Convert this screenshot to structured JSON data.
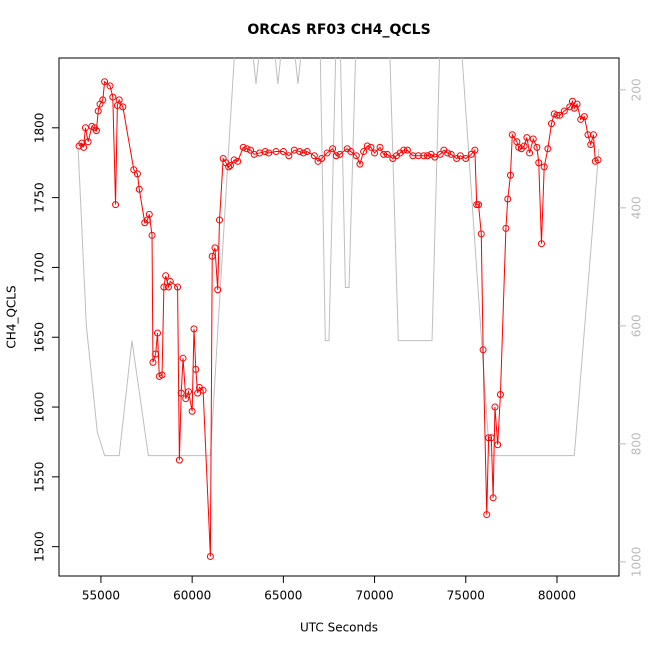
{
  "chart_data": {
    "type": "line",
    "title": "ORCAS RF03 CH4_QCLS",
    "x_label": "UTC Seconds",
    "y_label": "CH4_QCLS",
    "xlim": [
      52700,
      83400
    ],
    "ylim": [
      1479,
      1850
    ],
    "y2lim": [
      1024,
      146
    ],
    "xticks": [
      55000,
      60000,
      65000,
      70000,
      75000,
      80000
    ],
    "yticks": [
      1500,
      1550,
      1600,
      1650,
      1700,
      1750,
      1800
    ],
    "y2ticks": [
      200,
      400,
      600,
      800,
      1000
    ],
    "series": [
      {
        "color": "#bebebe",
        "axis": "y2",
        "markers": false,
        "x": [
          53750,
          54200,
          54800,
          55200,
          56000,
          56700,
          57600,
          61000,
          62000,
          62400,
          63200,
          63500,
          63800,
          64400,
          64700,
          65000,
          65500,
          65800,
          66100,
          67000,
          67300,
          67500,
          67900,
          68100,
          68400,
          68600,
          69000,
          70800,
          71300,
          73150,
          73600,
          74700,
          76300,
          80950,
          82300
        ],
        "values": [
          300,
          600,
          780,
          820,
          820,
          625,
          820,
          820,
          300,
          100,
          100,
          190,
          100,
          100,
          190,
          100,
          100,
          190,
          100,
          100,
          625,
          625,
          100,
          100,
          535,
          535,
          100,
          100,
          625,
          625,
          100,
          100,
          820,
          820,
          300
        ]
      },
      {
        "color": "#ff0000",
        "markers": true,
        "x": [
          53800,
          53950,
          54050,
          54150,
          54300,
          54500,
          54650,
          54750,
          54850,
          54950,
          55100,
          55200,
          55500,
          55650,
          55800,
          55900,
          56000,
          56200,
          56800,
          57000,
          57100,
          57400,
          57550,
          57650,
          57800,
          57850,
          58000,
          58100,
          58200,
          58350,
          58450,
          58550,
          58700,
          58800,
          59200,
          59300,
          59400,
          59500,
          59650,
          59800,
          60000,
          60100,
          60200,
          60300,
          60400,
          60600,
          61000,
          61100,
          61250,
          61400,
          61500,
          61700,
          61850,
          62000,
          62100,
          62300,
          62500,
          62800,
          63000,
          63200,
          63400,
          63700,
          64000,
          64200,
          64600,
          65000,
          65300,
          65600,
          65900,
          66100,
          66300,
          66700,
          66900,
          67100,
          67400,
          67700,
          67900,
          68100,
          68500,
          68700,
          69000,
          69200,
          69400,
          69600,
          69800,
          70000,
          70300,
          70500,
          70700,
          71000,
          71200,
          71400,
          71600,
          71800,
          72100,
          72400,
          72700,
          72900,
          73100,
          73300,
          73600,
          73800,
          74000,
          74200,
          74500,
          74700,
          75000,
          75300,
          75500,
          75600,
          75700,
          75850,
          75950,
          76150,
          76250,
          76400,
          76500,
          76600,
          76750,
          76900,
          77200,
          77300,
          77450,
          77550,
          77800,
          77900,
          78050,
          78200,
          78350,
          78500,
          78700,
          78900,
          79000,
          79150,
          79300,
          79500,
          79700,
          79850,
          80000,
          80150,
          80400,
          80700,
          80850,
          80950,
          81100,
          81300,
          81500,
          81700,
          81850,
          82000,
          82100,
          82250
        ],
        "values": [
          1787,
          1789,
          1786,
          1800,
          1790,
          1801,
          1800,
          1798,
          1812,
          1817,
          1820,
          1833,
          1830,
          1822,
          1745,
          1816,
          1820,
          1815,
          1770,
          1767,
          1756,
          1732,
          1734,
          1738,
          1723,
          1632,
          1638,
          1653,
          1622,
          1623,
          1686,
          1694,
          1686,
          1690,
          1686,
          1562,
          1610,
          1635,
          1606,
          1611,
          1597,
          1656,
          1627,
          1610,
          1614,
          1612,
          1493,
          1708,
          1714,
          1684,
          1734,
          1778,
          1775,
          1772,
          1773,
          1777,
          1776,
          1786,
          1785,
          1784,
          1781,
          1782,
          1783,
          1782,
          1783,
          1783,
          1780,
          1784,
          1783,
          1782,
          1783,
          1780,
          1776,
          1778,
          1782,
          1785,
          1780,
          1781,
          1785,
          1783,
          1780,
          1774,
          1783,
          1787,
          1786,
          1782,
          1786,
          1781,
          1781,
          1778,
          1780,
          1782,
          1784,
          1784,
          1780,
          1780,
          1780,
          1780,
          1781,
          1779,
          1781,
          1784,
          1782,
          1781,
          1778,
          1780,
          1778,
          1781,
          1784,
          1745,
          1745,
          1724,
          1641,
          1523,
          1578,
          1578,
          1535,
          1600,
          1573,
          1609,
          1728,
          1749,
          1766,
          1795,
          1790,
          1786,
          1785,
          1787,
          1793,
          1782,
          1792,
          1786,
          1775,
          1717,
          1772,
          1785,
          1803,
          1810,
          1809,
          1809,
          1812,
          1815,
          1819,
          1814,
          1817,
          1806,
          1808,
          1795,
          1788,
          1795,
          1776,
          1777
        ]
      }
    ]
  }
}
